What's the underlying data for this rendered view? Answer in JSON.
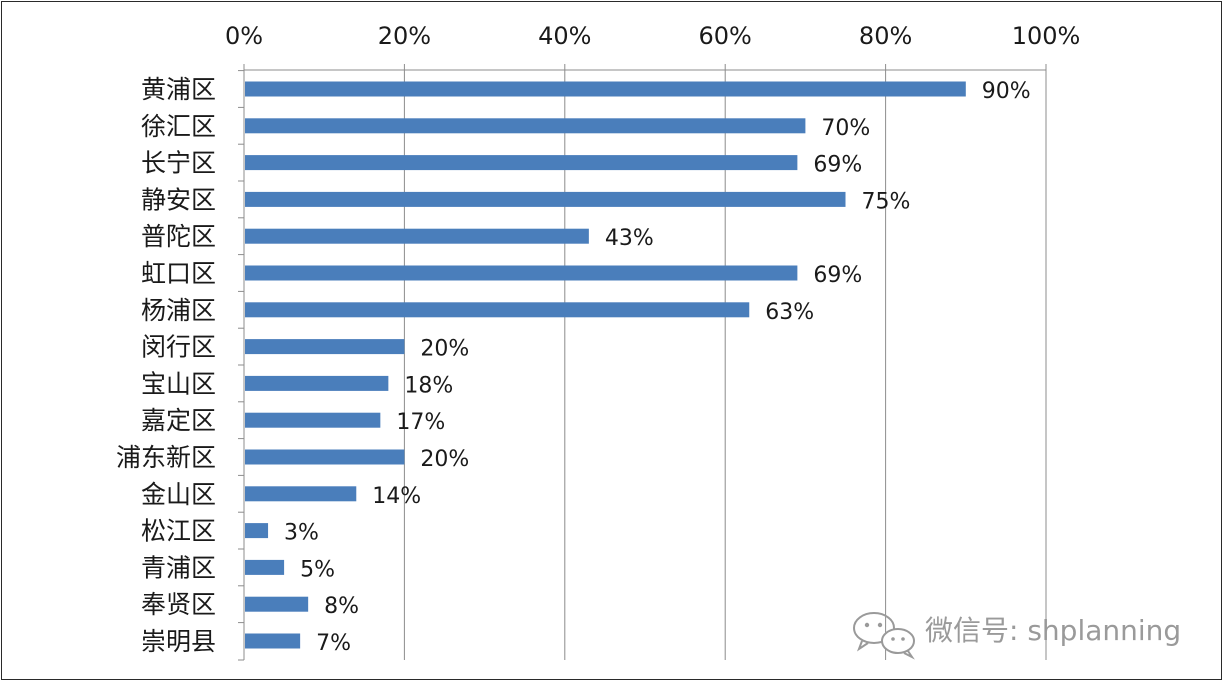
{
  "chart_data": {
    "type": "bar",
    "orientation": "horizontal",
    "categories": [
      "黄浦区",
      "徐汇区",
      "长宁区",
      "静安区",
      "普陀区",
      "虹口区",
      "杨浦区",
      "闵行区",
      "宝山区",
      "嘉定区",
      "浦东新区",
      "金山区",
      "松江区",
      "青浦区",
      "奉贤区",
      "崇明县"
    ],
    "values": [
      90,
      70,
      69,
      75,
      43,
      69,
      63,
      20,
      18,
      17,
      20,
      14,
      3,
      5,
      8,
      7
    ],
    "value_labels": [
      "90%",
      "70%",
      "69%",
      "75%",
      "43%",
      "69%",
      "63%",
      "20%",
      "18%",
      "17%",
      "20%",
      "14%",
      "3%",
      "5%",
      "8%",
      "7%"
    ],
    "x_ticks": [
      "0%",
      "20%",
      "40%",
      "60%",
      "80%",
      "100%"
    ],
    "xlim": [
      0,
      100
    ],
    "x_axis_position": "top",
    "grid": true,
    "title": "",
    "xlabel": "",
    "ylabel": "",
    "bar_color": "#4a7ebb"
  },
  "watermark": {
    "icon": "wechat-icon",
    "text": "微信号: shplanning"
  }
}
